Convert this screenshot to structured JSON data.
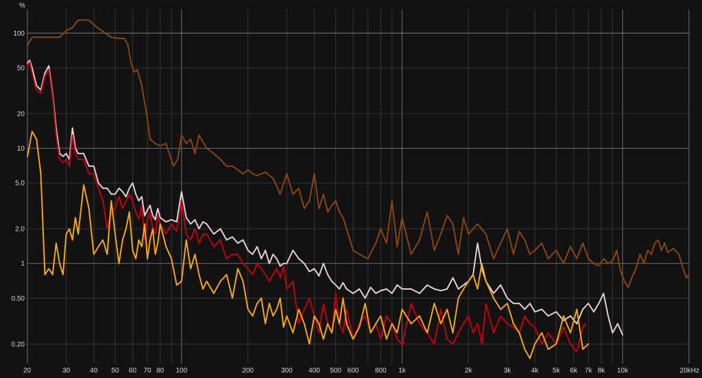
{
  "chart_data": {
    "type": "line",
    "title": "",
    "xlabel": "",
    "ylabel": "",
    "y_unit_label": "%",
    "x_scale": "log",
    "y_scale": "log",
    "xlim": [
      20,
      20000
    ],
    "ylim": [
      0.135,
      160
    ],
    "grid": true,
    "legend": "none",
    "x_major_ticks": [
      {
        "value": 20,
        "label": "20"
      },
      {
        "value": 100,
        "label": "100"
      },
      {
        "value": 1000,
        "label": "1k"
      },
      {
        "value": 10000,
        "label": "10k"
      },
      {
        "value": 20000,
        "label": "20kHz"
      }
    ],
    "x_minor_ticks": [
      {
        "value": 30,
        "label": "30"
      },
      {
        "value": 40,
        "label": "40"
      },
      {
        "value": 50,
        "label": "50"
      },
      {
        "value": 60,
        "label": "60"
      },
      {
        "value": 70,
        "label": "70"
      },
      {
        "value": 80,
        "label": "80"
      },
      {
        "value": 200,
        "label": "200"
      },
      {
        "value": 300,
        "label": "300"
      },
      {
        "value": 400,
        "label": "400"
      },
      {
        "value": 500,
        "label": "500"
      },
      {
        "value": 600,
        "label": "600"
      },
      {
        "value": 800,
        "label": "800"
      },
      {
        "value": 2000,
        "label": "2k"
      },
      {
        "value": 3000,
        "label": "3k"
      },
      {
        "value": 4000,
        "label": "4k"
      },
      {
        "value": 5000,
        "label": "5k"
      },
      {
        "value": 6000,
        "label": "6k"
      },
      {
        "value": 7000,
        "label": "7k"
      },
      {
        "value": 8000,
        "label": "8k"
      }
    ],
    "x_unlabeled_gridlines": [
      90,
      700,
      900,
      9000
    ],
    "y_major_ticks": [
      {
        "value": 100,
        "label": "100"
      },
      {
        "value": 10,
        "label": "10"
      },
      {
        "value": 1,
        "label": "1"
      }
    ],
    "y_minor_ticks": [
      {
        "value": 50,
        "label": "50"
      },
      {
        "value": 20,
        "label": "20"
      },
      {
        "value": 5,
        "label": "5.0"
      },
      {
        "value": 2,
        "label": "2.0"
      },
      {
        "value": 0.5,
        "label": "0.50"
      },
      {
        "value": 0.2,
        "label": "0.20"
      }
    ],
    "series": [
      {
        "color": "#8b4513",
        "x": [
          20,
          21,
          24,
          28,
          30,
          32,
          34,
          38,
          40,
          42,
          48,
          52,
          55,
          57,
          59,
          61,
          63,
          66,
          70,
          72,
          76,
          80,
          85,
          88,
          92,
          96,
          100,
          105,
          110,
          115,
          120,
          130,
          140,
          150,
          160,
          170,
          180,
          190,
          200,
          210,
          220,
          240,
          260,
          280,
          300,
          320,
          340,
          360,
          380,
          400,
          420,
          440,
          460,
          480,
          500,
          520,
          540,
          560,
          600,
          640,
          700,
          760,
          800,
          850,
          900,
          950,
          1000,
          1100,
          1200,
          1300,
          1400,
          1500,
          1600,
          1700,
          1800,
          1900,
          2000,
          2200,
          2400,
          2600,
          2800,
          3000,
          3200,
          3400,
          3600,
          3800,
          4000,
          4300,
          4600,
          5000,
          5400,
          5800,
          6200,
          6600,
          7000,
          7400,
          7800,
          8200,
          8600,
          9000,
          9400,
          9800,
          10200,
          10600,
          11000,
          11500,
          12000,
          12500,
          13000,
          13500,
          14000,
          14500,
          15000,
          15500,
          16000,
          17000,
          18000,
          19000,
          19500,
          20000
        ],
        "y": [
          78,
          92,
          92,
          92,
          105,
          112,
          130,
          130,
          118,
          110,
          92,
          90,
          90,
          80,
          55,
          46,
          48,
          35,
          18,
          12,
          11,
          10.5,
          11,
          9,
          7,
          8,
          13,
          11,
          12,
          9,
          13,
          10,
          9,
          8,
          7,
          7,
          6.5,
          6,
          6.5,
          6,
          5.8,
          6.2,
          5.5,
          4,
          6,
          4,
          4.5,
          3,
          3.5,
          6,
          3,
          4,
          2.8,
          3.2,
          3.5,
          2.8,
          2.5,
          2,
          1.3,
          1.2,
          1.1,
          1.5,
          2,
          1.5,
          3.5,
          1.4,
          2.5,
          1.2,
          1.6,
          2.8,
          1.3,
          1.8,
          2.6,
          2.2,
          1.2,
          2.5,
          1.8,
          2.2,
          1.8,
          1.1,
          1.5,
          2,
          1.2,
          1.9,
          1.6,
          1.2,
          1.3,
          1.5,
          1.1,
          1.3,
          1.0,
          1.4,
          1.1,
          1.5,
          1.1,
          1.0,
          0.95,
          1.1,
          1.0,
          1.05,
          1.3,
          0.85,
          0.7,
          0.62,
          0.75,
          0.9,
          1.2,
          1.0,
          1.3,
          1.2,
          1.5,
          1.6,
          1.3,
          1.5,
          1.25,
          1.35,
          1.2,
          0.85,
          0.75,
          0.8
        ]
      },
      {
        "color": "#e6d0d4",
        "x": [
          20,
          20.5,
          21,
          22,
          23,
          24,
          25,
          26,
          27,
          28,
          29,
          30,
          31,
          32,
          33,
          34,
          36,
          38,
          40,
          42,
          44,
          46,
          48,
          50,
          52,
          54,
          56,
          58,
          60,
          62,
          64,
          66,
          68,
          70,
          72,
          74,
          76,
          78,
          80,
          85,
          90,
          95,
          100,
          105,
          110,
          115,
          120,
          125,
          130,
          140,
          150,
          160,
          170,
          180,
          190,
          200,
          210,
          220,
          230,
          240,
          250,
          260,
          270,
          280,
          290,
          300,
          320,
          340,
          360,
          380,
          400,
          420,
          440,
          460,
          480,
          500,
          520,
          540,
          560,
          600,
          640,
          680,
          720,
          760,
          800,
          850,
          900,
          950,
          1000,
          1100,
          1200,
          1300,
          1400,
          1500,
          1600,
          1700,
          1800,
          1900,
          2000,
          2100,
          2200,
          2300,
          2400,
          2600,
          2800,
          3000,
          3200,
          3400,
          3600,
          3800,
          4000,
          4300,
          4600,
          5000,
          5400,
          5800,
          6200,
          6600,
          7000,
          7400,
          7800,
          8200,
          8600,
          9000,
          9500,
          10000
        ],
        "y": [
          55,
          58,
          50,
          35,
          32,
          45,
          52,
          30,
          15,
          9,
          8.5,
          9,
          8,
          15,
          10,
          9,
          9,
          7,
          7,
          5,
          4.5,
          4.5,
          4,
          4,
          4.5,
          4.2,
          3.8,
          4.5,
          5,
          4,
          3.5,
          3.8,
          2.6,
          2.9,
          3.2,
          2.6,
          2.4,
          3.0,
          2.5,
          2.3,
          2.4,
          2.3,
          4.2,
          2.5,
          2.2,
          2.4,
          2.0,
          2.3,
          2.2,
          1.8,
          2.0,
          1.6,
          1.7,
          1.5,
          1.6,
          1.3,
          1.2,
          1.4,
          1.1,
          1.3,
          1.0,
          1.2,
          1.1,
          0.95,
          1.0,
          1.0,
          1.3,
          1.1,
          1.0,
          0.85,
          0.9,
          0.78,
          1.0,
          0.8,
          0.7,
          0.65,
          0.6,
          0.68,
          0.6,
          0.55,
          0.6,
          0.5,
          0.62,
          0.55,
          0.58,
          0.6,
          0.55,
          0.65,
          0.6,
          0.6,
          0.55,
          0.65,
          0.6,
          0.58,
          0.6,
          0.75,
          0.6,
          0.65,
          0.7,
          0.8,
          1.5,
          0.9,
          0.7,
          0.55,
          0.65,
          0.5,
          0.45,
          0.45,
          0.4,
          0.45,
          0.38,
          0.4,
          0.35,
          0.38,
          0.32,
          0.35,
          0.3,
          0.4,
          0.45,
          0.38,
          0.45,
          0.55,
          0.35,
          0.25,
          0.3,
          0.24
        ]
      },
      {
        "color": "#c0000e",
        "x": [
          20,
          20.5,
          21,
          22,
          23,
          24,
          25,
          26,
          27,
          28,
          29,
          30,
          31,
          32,
          33,
          34,
          36,
          38,
          40,
          42,
          44,
          46,
          48,
          50,
          52,
          54,
          56,
          58,
          60,
          62,
          64,
          66,
          68,
          70,
          72,
          74,
          76,
          78,
          80,
          85,
          90,
          95,
          100,
          105,
          110,
          115,
          120,
          125,
          130,
          140,
          150,
          160,
          170,
          180,
          190,
          200,
          210,
          220,
          230,
          240,
          250,
          260,
          270,
          280,
          290,
          300,
          320,
          340,
          360,
          380,
          400,
          420,
          440,
          460,
          480,
          500,
          520,
          540,
          560,
          600,
          640,
          680,
          720,
          760,
          800,
          850,
          900,
          950,
          1000,
          1100,
          1200,
          1300,
          1400,
          1500,
          1600,
          1700,
          1800,
          1900,
          2000,
          2100,
          2200,
          2300,
          2400,
          2600,
          2800,
          3000,
          3200,
          3400,
          3600,
          3800,
          4000,
          4300,
          4600,
          5000,
          5400,
          5800,
          6200,
          6600,
          6800
        ],
        "y": [
          52,
          56,
          45,
          32,
          30,
          42,
          48,
          28,
          13,
          8,
          7.5,
          8,
          7,
          13,
          9,
          8,
          8,
          6,
          6,
          4.5,
          3.5,
          2,
          2.8,
          3,
          3.8,
          3,
          3.5,
          4,
          3.5,
          2.8,
          2.4,
          3.2,
          1.6,
          2.4,
          2.8,
          2.0,
          1.8,
          2.6,
          2.2,
          1.8,
          2.2,
          1.9,
          3.5,
          1.8,
          1.6,
          2.0,
          1.5,
          1.8,
          1.8,
          1.4,
          1.6,
          1.1,
          1.2,
          1.2,
          1.0,
          0.9,
          0.8,
          1.0,
          0.9,
          0.8,
          0.7,
          0.8,
          0.9,
          0.75,
          0.95,
          0.6,
          0.7,
          0.3,
          0.4,
          0.5,
          0.35,
          0.25,
          0.45,
          0.3,
          0.25,
          0.55,
          0.3,
          0.25,
          0.4,
          0.22,
          0.3,
          0.35,
          0.25,
          0.3,
          0.22,
          0.35,
          0.3,
          0.22,
          0.2,
          0.45,
          0.3,
          0.25,
          0.2,
          0.4,
          0.22,
          0.2,
          0.25,
          0.3,
          0.35,
          0.25,
          0.3,
          0.2,
          0.45,
          0.25,
          0.35,
          0.3,
          0.28,
          0.25,
          0.35,
          0.3,
          0.28,
          0.2,
          0.25,
          0.2,
          0.28,
          0.2,
          0.17,
          0.28,
          0.3
        ]
      },
      {
        "color": "#f5a623",
        "x": [
          20,
          21,
          22,
          23,
          24,
          25,
          26,
          27,
          28,
          29,
          30,
          31,
          32,
          33,
          34,
          36,
          38,
          40,
          42,
          44,
          46,
          48,
          50,
          52,
          54,
          56,
          58,
          60,
          62,
          64,
          66,
          68,
          70,
          72,
          74,
          76,
          78,
          80,
          85,
          90,
          95,
          100,
          105,
          110,
          115,
          120,
          125,
          130,
          140,
          150,
          160,
          170,
          180,
          190,
          200,
          210,
          220,
          230,
          240,
          250,
          260,
          270,
          280,
          290,
          300,
          320,
          340,
          360,
          380,
          400,
          420,
          440,
          460,
          480,
          500,
          520,
          540,
          560,
          600,
          640,
          680,
          720,
          760,
          800,
          850,
          900,
          950,
          1000,
          1100,
          1200,
          1300,
          1400,
          1500,
          1600,
          1700,
          1800,
          1900,
          2000,
          2100,
          2200,
          2300,
          2400,
          2600,
          2800,
          3000,
          3200,
          3400,
          3600,
          3800,
          4000,
          4300,
          4600,
          5000,
          5400,
          5800,
          6200,
          6600,
          7000
        ],
        "y": [
          8.5,
          14,
          12,
          6,
          0.8,
          0.9,
          0.8,
          1.5,
          1.0,
          0.8,
          1.8,
          2.0,
          1.6,
          2.5,
          1.8,
          4.8,
          3,
          1.2,
          1.4,
          1.6,
          1.2,
          3.5,
          1.8,
          1.0,
          1.6,
          2.0,
          2.8,
          1.3,
          1.1,
          1.6,
          1.4,
          2.2,
          1.1,
          1.6,
          2.0,
          1.2,
          1.5,
          2.2,
          1.4,
          1.1,
          0.65,
          0.7,
          1.6,
          0.9,
          1.2,
          0.8,
          0.6,
          0.7,
          0.55,
          0.7,
          0.8,
          0.5,
          0.9,
          0.7,
          0.4,
          0.35,
          0.45,
          0.5,
          0.3,
          0.45,
          0.35,
          0.4,
          0.5,
          0.28,
          0.35,
          0.25,
          0.4,
          0.3,
          0.2,
          0.35,
          0.3,
          0.22,
          0.3,
          0.25,
          0.4,
          0.3,
          0.5,
          0.3,
          0.22,
          0.28,
          0.45,
          0.25,
          0.3,
          0.35,
          0.22,
          0.3,
          0.25,
          0.4,
          0.3,
          0.35,
          0.25,
          0.45,
          0.3,
          0.4,
          0.25,
          0.5,
          0.6,
          0.7,
          0.8,
          0.6,
          1.0,
          0.7,
          0.5,
          0.4,
          0.45,
          0.3,
          0.25,
          0.18,
          0.15,
          0.2,
          0.25,
          0.18,
          0.2,
          0.35,
          0.25,
          0.4,
          0.18,
          0.2
        ]
      }
    ]
  }
}
